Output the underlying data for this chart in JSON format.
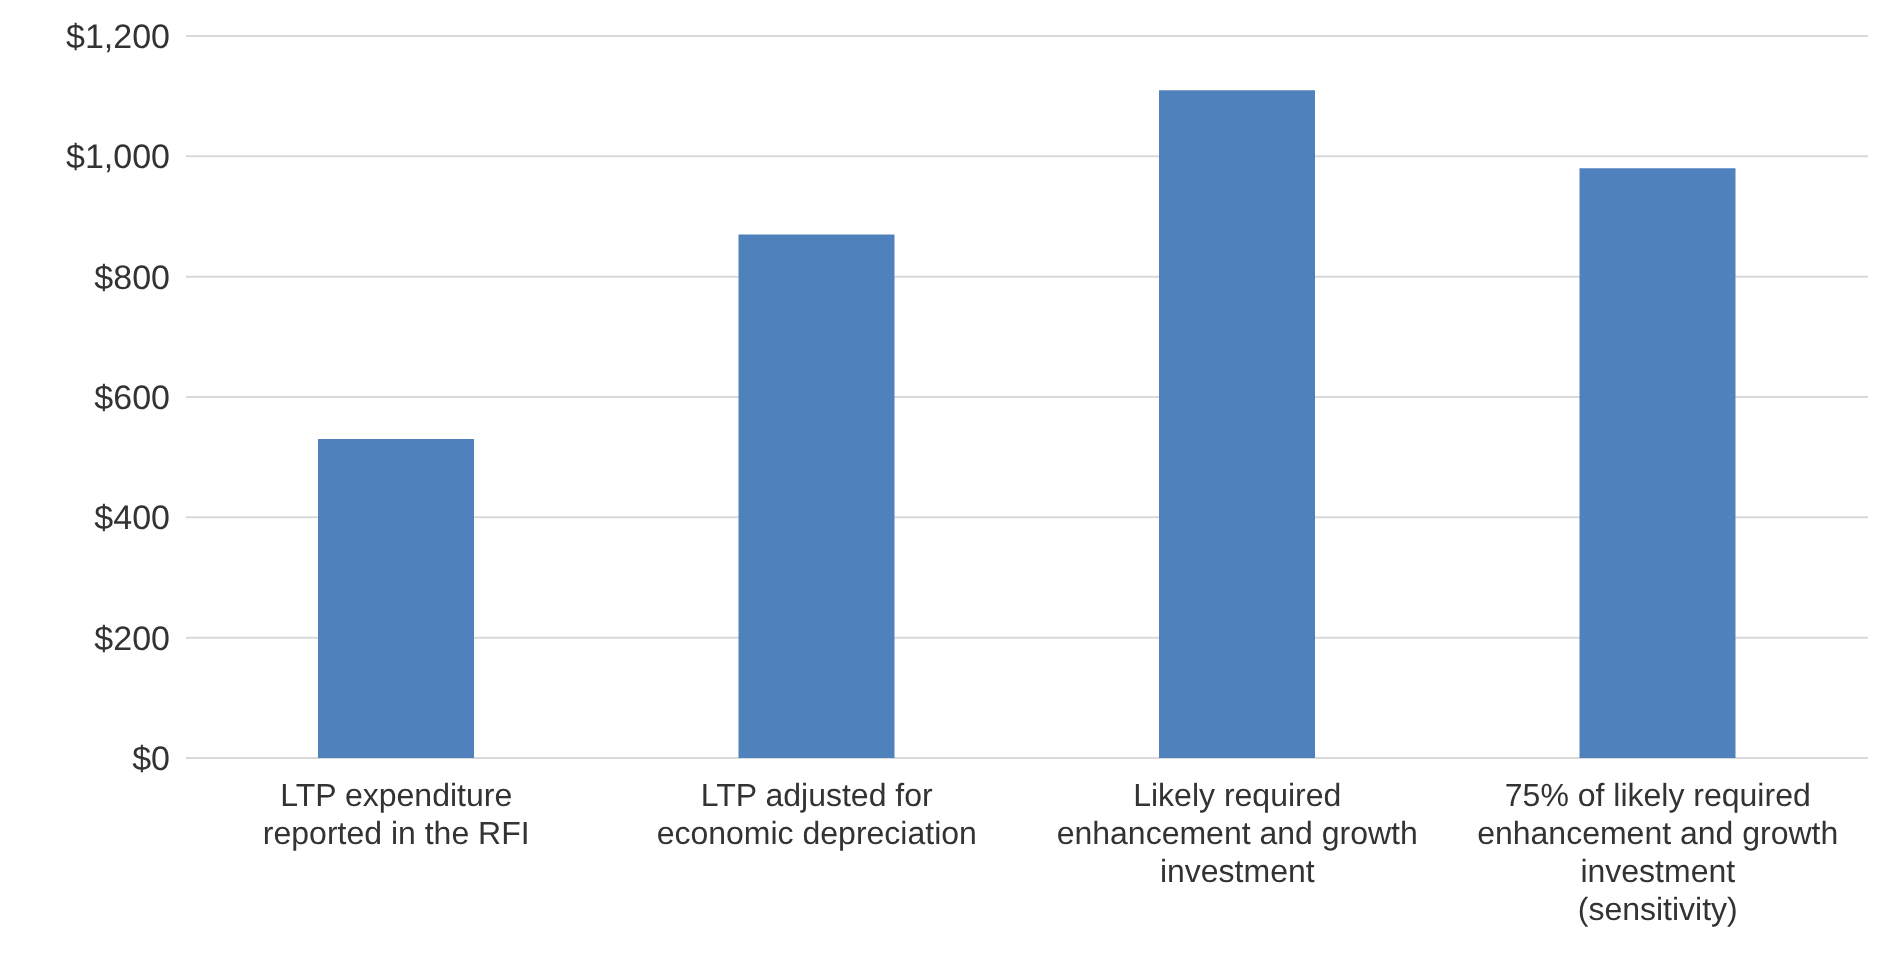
{
  "chart_data": {
    "type": "bar",
    "categories": [
      "LTP expenditure reported in the RFI",
      "LTP adjusted for economic depreciation",
      "Likely required enhancement and growth investment",
      "75% of likely required enhancement and growth investment (sensitivity)"
    ],
    "values": [
      530,
      870,
      1110,
      980
    ],
    "color": "#4f81bd",
    "ylim": [
      0,
      1200
    ],
    "yticks": [
      {
        "value": 0,
        "label": "$0"
      },
      {
        "value": 200,
        "label": "$200"
      },
      {
        "value": 400,
        "label": "$400"
      },
      {
        "value": 600,
        "label": "$600"
      },
      {
        "value": 800,
        "label": "$800"
      },
      {
        "value": 1000,
        "label": "$1,000"
      },
      {
        "value": 1200,
        "label": "$1,200"
      }
    ],
    "grid": "y"
  }
}
